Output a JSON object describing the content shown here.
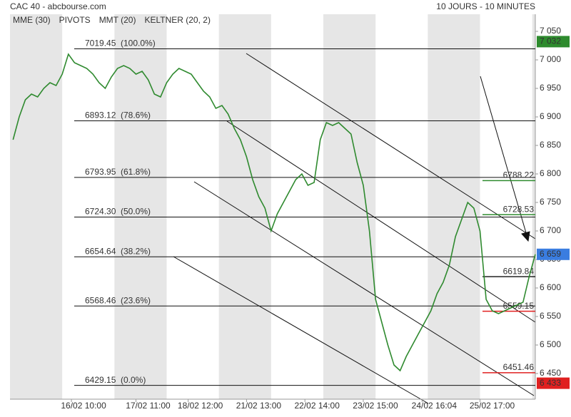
{
  "chart_data": {
    "type": "line",
    "title": "CAC 40 - abcbourse.com",
    "subtitle": "10 JOURS - 10 MINUTES",
    "legend": [
      {
        "name": "MME (30)",
        "color": "#2a6fc7"
      },
      {
        "name": "PIVOTS",
        "color": "#555555"
      },
      {
        "name": "MMT (20)",
        "color": "#2a6fc7"
      },
      {
        "name": "KELTNER (20, 2)",
        "color": "#3f9a3f"
      }
    ],
    "color": "#2f8a2f",
    "x": [
      0,
      1,
      2,
      3,
      4,
      5,
      6,
      7,
      8,
      9,
      10,
      11,
      12,
      13,
      14,
      15,
      16,
      17,
      18,
      19,
      20,
      21,
      22,
      23,
      24,
      25,
      26,
      27,
      28,
      29,
      30,
      31,
      32,
      33,
      34,
      35,
      36,
      37,
      38,
      39,
      40,
      41,
      42,
      43,
      44,
      45,
      46,
      47,
      48,
      49,
      50,
      51,
      52,
      53,
      54,
      55,
      56,
      57,
      58,
      59,
      60,
      61,
      62,
      63,
      64,
      65,
      66,
      67,
      68,
      69,
      70,
      71,
      72,
      73,
      74,
      75,
      76,
      77,
      78,
      79,
      80,
      81,
      82,
      83,
      84,
      85
    ],
    "values": [
      6860,
      6900,
      6930,
      6940,
      6935,
      6950,
      6960,
      6955,
      6975,
      7010,
      6995,
      6990,
      6985,
      6975,
      6960,
      6950,
      6970,
      6985,
      6990,
      6985,
      6975,
      6980,
      6965,
      6940,
      6935,
      6960,
      6975,
      6985,
      6980,
      6975,
      6960,
      6945,
      6935,
      6915,
      6920,
      6905,
      6880,
      6860,
      6830,
      6790,
      6760,
      6740,
      6700,
      6730,
      6750,
      6770,
      6790,
      6800,
      6780,
      6785,
      6860,
      6890,
      6885,
      6890,
      6880,
      6870,
      6820,
      6780,
      6700,
      6580,
      6540,
      6500,
      6465,
      6455,
      6480,
      6500,
      6520,
      6540,
      6560,
      6590,
      6610,
      6640,
      6690,
      6720,
      6750,
      6740,
      6700,
      6580,
      6560,
      6555,
      6560,
      6565,
      6570,
      6575,
      6620,
      6659
    ],
    "xlim": [
      -0.5,
      85
    ],
    "xticks": [
      {
        "value": 9.5,
        "label": "16/02 10:00"
      },
      {
        "value": 20,
        "label": "17/02 11:00"
      },
      {
        "value": 28.5,
        "label": "18/02 12:00"
      },
      {
        "value": 38,
        "label": "21/02 13:00"
      },
      {
        "value": 47.5,
        "label": "22/02 14:00"
      },
      {
        "value": 57,
        "label": "23/02 15:00"
      },
      {
        "value": 66.57,
        "label": "24/02 16:04"
      },
      {
        "value": 76,
        "label": "25/02 17:00"
      }
    ],
    "ylim": [
      6380,
      7080
    ],
    "yticks": [
      {
        "value": 7050,
        "label": "7 050"
      },
      {
        "value": 7000,
        "label": "7 000"
      },
      {
        "value": 6950,
        "label": "6 950"
      },
      {
        "value": 6900,
        "label": "6 900"
      },
      {
        "value": 6850,
        "label": "6 850"
      },
      {
        "value": 6800,
        "label": "6 800"
      },
      {
        "value": 6750,
        "label": "6 750"
      },
      {
        "value": 6700,
        "label": "6 700"
      },
      {
        "value": 6650,
        "label": "6 650"
      },
      {
        "value": 6600,
        "label": "6 600"
      },
      {
        "value": 6550,
        "label": "6 550"
      },
      {
        "value": 6500,
        "label": "6 500"
      },
      {
        "value": 6450,
        "label": "6 450"
      }
    ],
    "price_markers": [
      {
        "value": 7032,
        "label": "7 032",
        "color": "#2e8b2e"
      },
      {
        "value": 6659,
        "label": "6 659",
        "color": "#3a7de0"
      },
      {
        "value": 6433,
        "label": "6 433",
        "color": "#e02020"
      }
    ],
    "fibonacci": [
      {
        "value": 7019.45,
        "label": "7019.45",
        "pct": "(100.0%)"
      },
      {
        "value": 6893.12,
        "label": "6893.12",
        "pct": "(78.6%)"
      },
      {
        "value": 6793.95,
        "label": "6793.95",
        "pct": "(61.8%)"
      },
      {
        "value": 6724.3,
        "label": "6724.30",
        "pct": "(50.0%)"
      },
      {
        "value": 6654.64,
        "label": "6654.64",
        "pct": "(38.2%)"
      },
      {
        "value": 6568.46,
        "label": "6568.46",
        "pct": "(23.6%)"
      },
      {
        "value": 6429.15,
        "label": "6429.15",
        "pct": "(0.0%)"
      }
    ],
    "pivots": [
      {
        "value": 6788.22,
        "color": "#2e8b2e"
      },
      {
        "value": 6728.53,
        "color": "#2e8b2e"
      },
      {
        "value": 6619.84,
        "color": "#222222"
      },
      {
        "value": 6559.15,
        "color": "#e02020"
      },
      {
        "value": 6451.46,
        "color": "#e02020"
      }
    ]
  }
}
